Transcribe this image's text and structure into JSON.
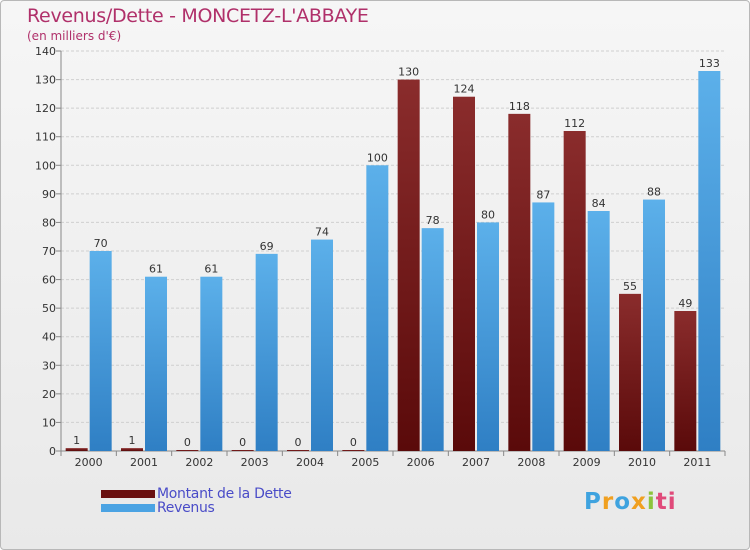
{
  "chart_data": {
    "type": "bar",
    "title": "Revenus/Dette - MONCETZ-L'ABBAYE",
    "subtitle": "(en milliers d'€)",
    "categories": [
      "2000",
      "2001",
      "2002",
      "2003",
      "2004",
      "2005",
      "2006",
      "2007",
      "2008",
      "2009",
      "2010",
      "2011"
    ],
    "series": [
      {
        "name": "Montant de la Dette",
        "color": "#7a1f1f",
        "values": [
          1,
          1,
          0,
          0,
          0,
          0,
          130,
          124,
          118,
          112,
          55,
          49
        ]
      },
      {
        "name": "Revenus",
        "color": "#4ba3e3",
        "values": [
          70,
          61,
          61,
          69,
          74,
          100,
          78,
          80,
          87,
          84,
          88,
          133
        ]
      }
    ],
    "ylim": [
      0,
      140
    ],
    "yticks": [
      0,
      10,
      20,
      30,
      40,
      50,
      60,
      70,
      80,
      90,
      100,
      110,
      120,
      130,
      140
    ],
    "grid": true,
    "legend": "bottom-left"
  },
  "logo": {
    "text": "Proxiti",
    "letters": [
      "P",
      "r",
      "o",
      "x",
      "i",
      "ti"
    ]
  }
}
